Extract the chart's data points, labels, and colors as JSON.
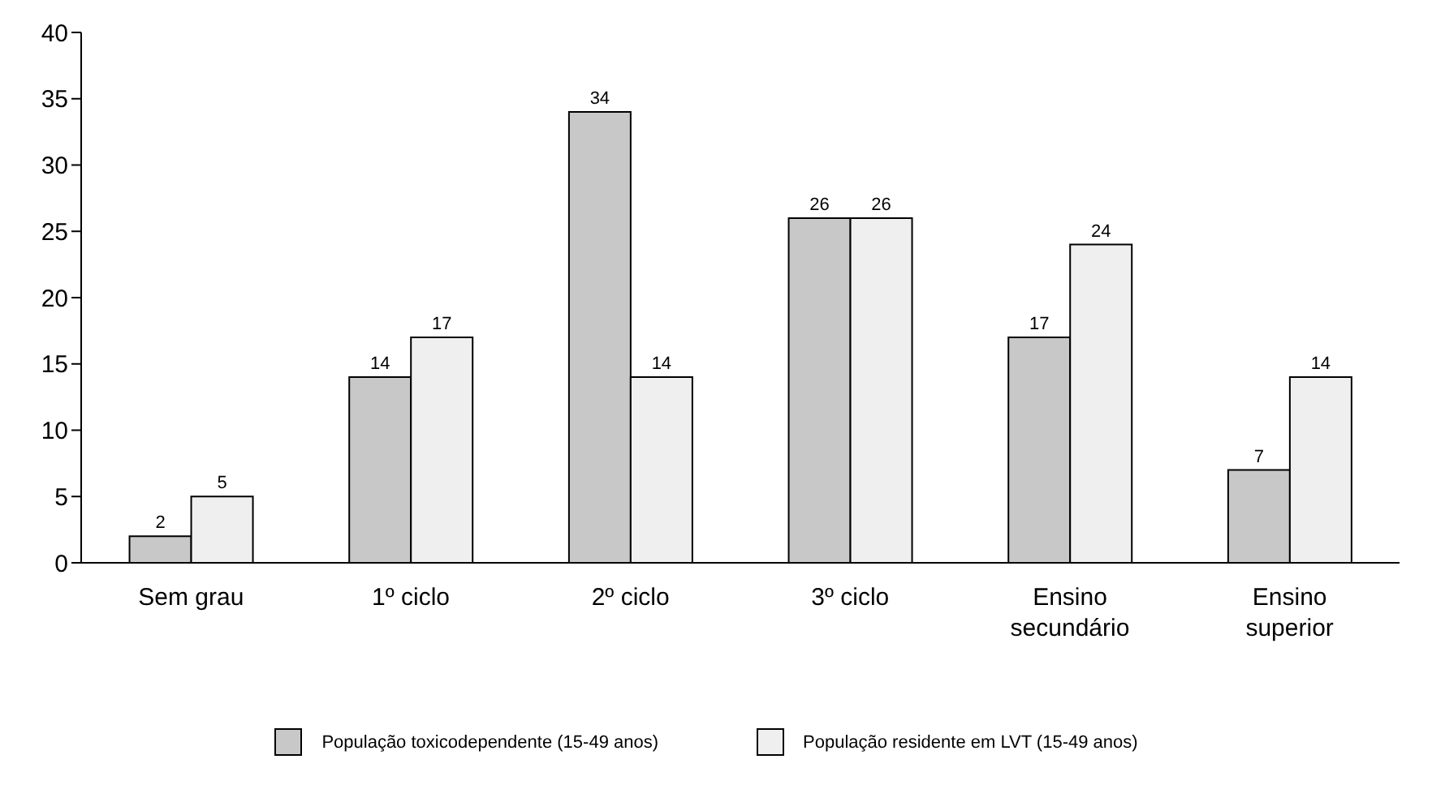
{
  "chart_data": {
    "type": "bar",
    "categories": [
      "Sem grau",
      "1º ciclo",
      "2º ciclo",
      "3º ciclo",
      "Ensino secundário",
      "Ensino superior"
    ],
    "series": [
      {
        "name": "População toxicodependente (15-49 anos)",
        "color": "#c8c8c8",
        "values": [
          2,
          14,
          34,
          26,
          17,
          7
        ]
      },
      {
        "name": "População residente em LVT (15-49 anos)",
        "color": "#efefef",
        "values": [
          5,
          17,
          14,
          26,
          24,
          14
        ]
      }
    ],
    "ylim": [
      0,
      40
    ],
    "yticks": [
      0,
      5,
      10,
      15,
      20,
      25,
      30,
      35,
      40
    ],
    "grid": false,
    "legend": "bottom",
    "data_labels": true
  }
}
